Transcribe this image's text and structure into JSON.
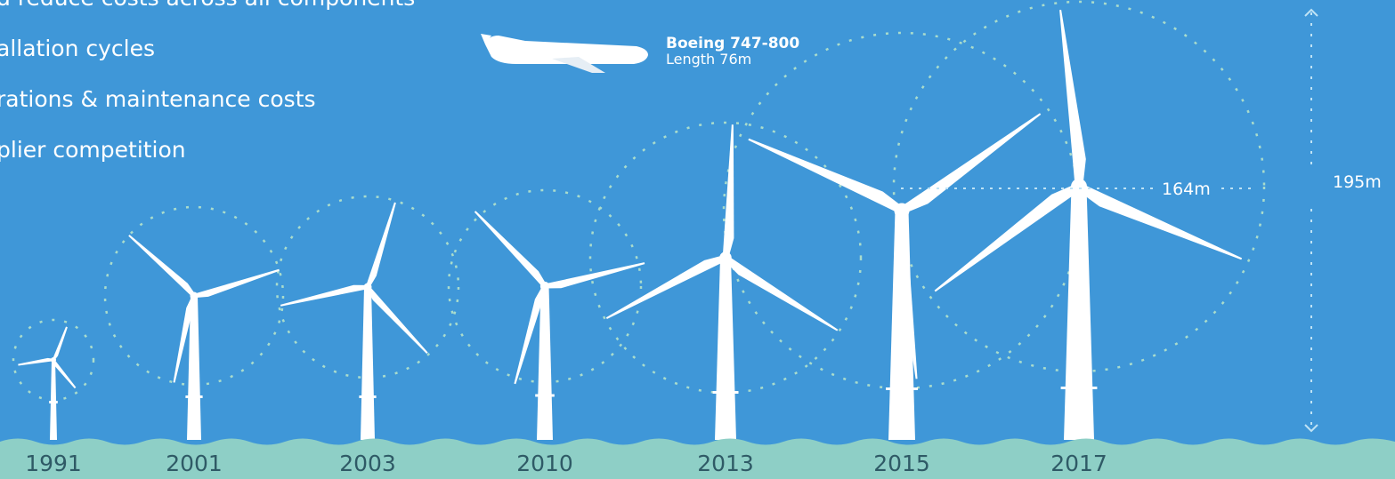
{
  "bullets": [
    "d reduce costs across all components",
    "allation cycles",
    "rations & maintenance costs",
    "plier competition"
  ],
  "aircraft": {
    "name": "Boeing 747-800",
    "length": "Length 76m"
  },
  "rotor_diameter": "164m",
  "tip_height": "195m",
  "years": [
    "1991",
    "2001",
    "2003",
    "2010",
    "2013",
    "2015",
    "2017"
  ]
}
